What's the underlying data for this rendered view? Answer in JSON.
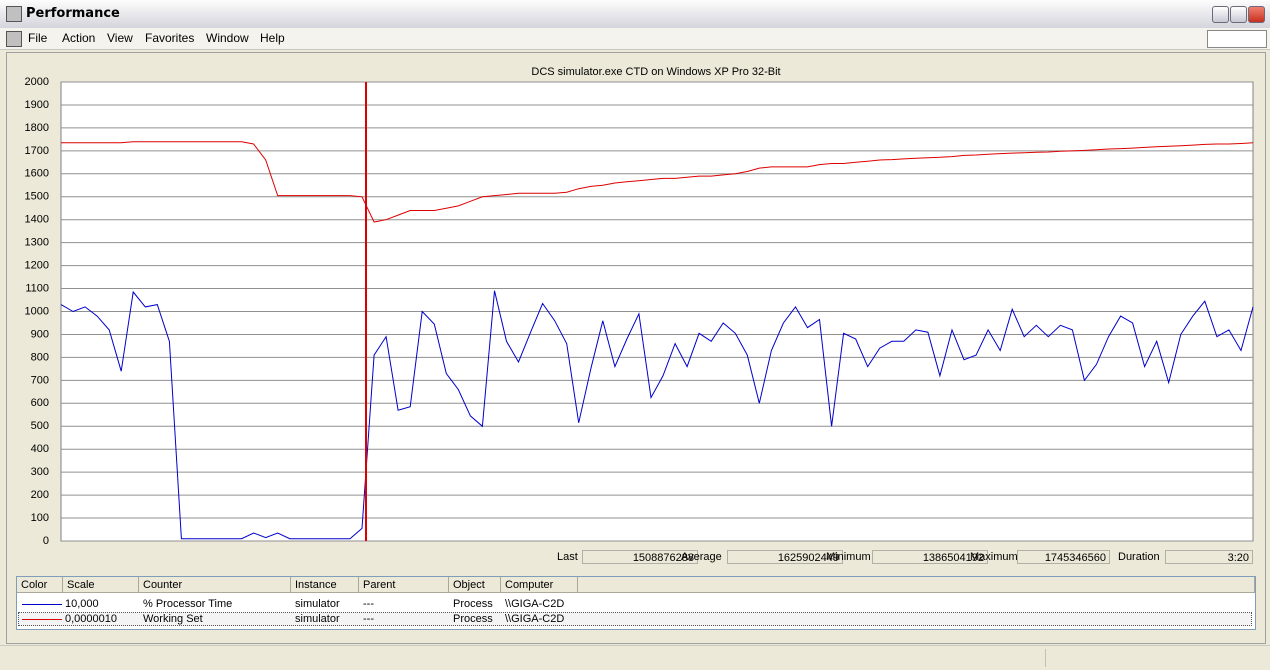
{
  "window": {
    "title": "Performance"
  },
  "menu": [
    "File",
    "Action",
    "View",
    "Favorites",
    "Window",
    "Help"
  ],
  "chart_data": {
    "type": "line",
    "title": "DCS simulator.exe CTD on Windows XP Pro 32-Bit",
    "ylim": [
      0,
      2000
    ],
    "yticks": [
      0,
      100,
      200,
      300,
      400,
      500,
      600,
      700,
      800,
      900,
      1000,
      1100,
      1200,
      1300,
      1400,
      1500,
      1600,
      1700,
      1800,
      1900,
      2000
    ],
    "grid": true,
    "series": [
      {
        "name": "% Processor Time",
        "color": "#0000cc",
        "values": [
          1030,
          1000,
          1020,
          980,
          920,
          740,
          1085,
          1020,
          1030,
          870,
          10,
          10,
          10,
          10,
          10,
          10,
          35,
          15,
          35,
          10,
          10,
          10,
          10,
          10,
          10,
          55,
          810,
          890,
          570,
          585,
          1000,
          945,
          730,
          660,
          545,
          500,
          1090,
          870,
          780,
          910,
          1035,
          960,
          860,
          515,
          750,
          960,
          760,
          880,
          990,
          625,
          720,
          860,
          760,
          905,
          870,
          950,
          905,
          810,
          600,
          830,
          950,
          1020,
          930,
          965,
          500,
          905,
          880,
          760,
          840,
          870,
          870,
          920,
          910,
          720,
          920,
          790,
          810,
          920,
          830,
          1010,
          890,
          940,
          890,
          940,
          920,
          700,
          770,
          890,
          980,
          950,
          760,
          870,
          690,
          900,
          980,
          1045,
          890,
          920,
          830,
          1020
        ]
      },
      {
        "name": "Working Set",
        "color": "#dd0000",
        "values": [
          1735,
          1735,
          1735,
          1735,
          1735,
          1735,
          1740,
          1740,
          1740,
          1740,
          1740,
          1740,
          1740,
          1740,
          1740,
          1740,
          1730,
          1660,
          1505,
          1505,
          1505,
          1505,
          1505,
          1505,
          1505,
          1500,
          1390,
          1400,
          1420,
          1440,
          1440,
          1440,
          1450,
          1460,
          1480,
          1500,
          1505,
          1510,
          1515,
          1515,
          1515,
          1515,
          1520,
          1535,
          1545,
          1550,
          1560,
          1565,
          1570,
          1575,
          1580,
          1580,
          1585,
          1590,
          1590,
          1595,
          1600,
          1610,
          1625,
          1630,
          1630,
          1630,
          1630,
          1640,
          1645,
          1645,
          1650,
          1655,
          1660,
          1662,
          1665,
          1668,
          1670,
          1672,
          1675,
          1680,
          1682,
          1685,
          1688,
          1690,
          1692,
          1694,
          1695,
          1698,
          1700,
          1702,
          1705,
          1708,
          1710,
          1712,
          1715,
          1718,
          1720,
          1722,
          1725,
          1728,
          1730,
          1730,
          1732,
          1735
        ]
      }
    ]
  },
  "stats": [
    {
      "label": "Last",
      "value": "1508876288"
    },
    {
      "label": "Average",
      "value": "1625902449"
    },
    {
      "label": "Minimum",
      "value": "1386504192"
    },
    {
      "label": "Maximum",
      "value": "1745346560"
    },
    {
      "label": "Duration",
      "value": "3:20"
    }
  ],
  "counters": {
    "columns": [
      "Color",
      "Scale",
      "Counter",
      "Instance",
      "Parent",
      "Object",
      "Computer"
    ],
    "rows": [
      [
        "10,000",
        "% Processor Time",
        "simulator",
        "---",
        "Process",
        "\\\\GIGA-C2D"
      ],
      [
        "0,0000010",
        "Working Set",
        "simulator",
        "---",
        "Process",
        "\\\\GIGA-C2D"
      ]
    ]
  }
}
